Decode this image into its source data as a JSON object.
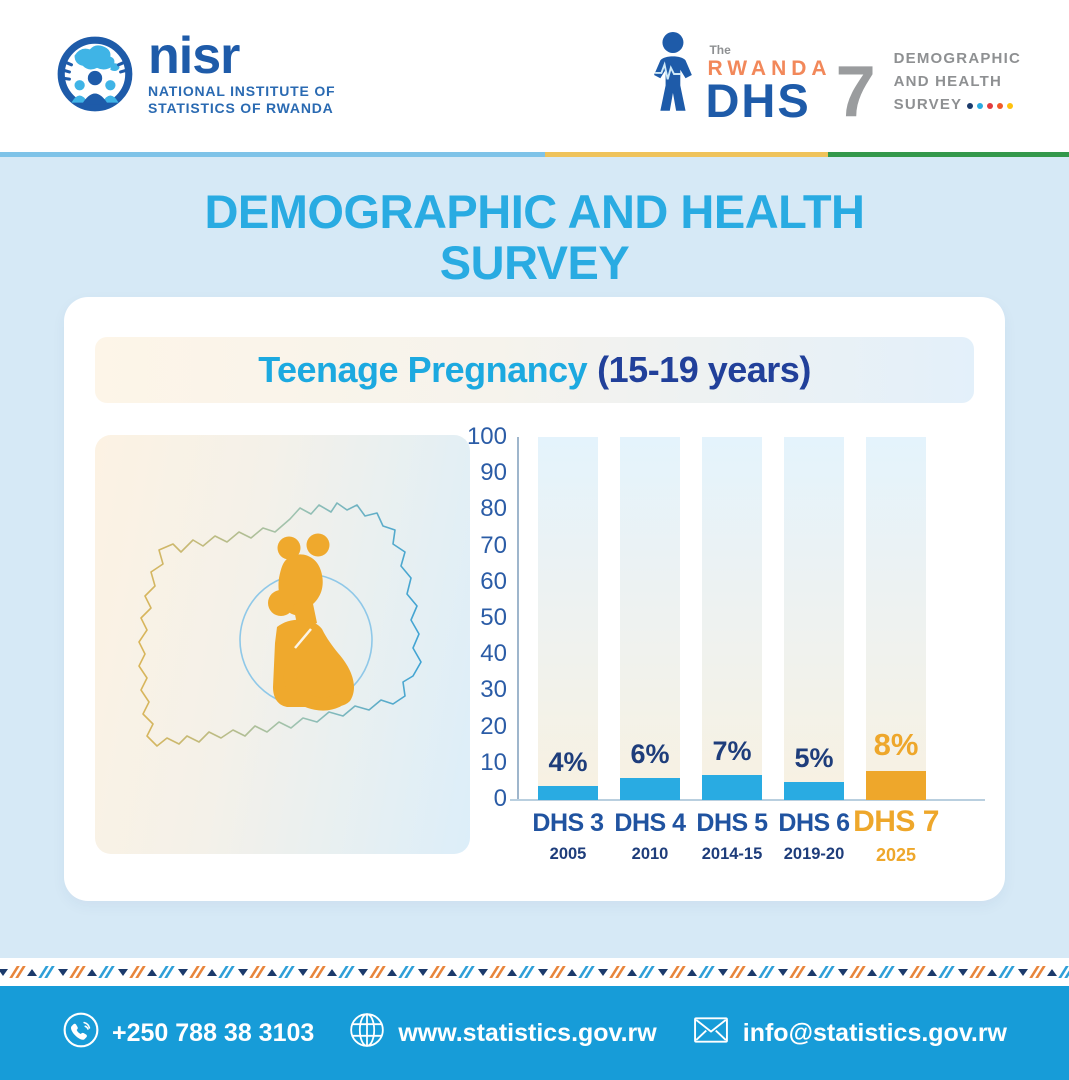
{
  "header": {
    "nisr_logo": {
      "name": "nisr",
      "line1": "NATIONAL INSTITUTE OF",
      "line2": "STATISTICS OF RWANDA"
    },
    "dhs_logo": {
      "the": "The",
      "rwanda": "RWANDA",
      "dhs": "DHS",
      "seven": "7",
      "right_line1": "DEMOGRAPHIC",
      "right_line2": "AND HEALTH",
      "right_line3": "SURVEY",
      "dots": [
        "#1B3A6B",
        "#29ABE2",
        "#E23B3E",
        "#F15A29",
        "#FFC20E"
      ]
    }
  },
  "flag_strip": {
    "colors": [
      "#7EC3E8",
      "#EFC35B",
      "#33984B"
    ],
    "widths": [
      "51%",
      "26.5%",
      "22.5%"
    ]
  },
  "main_title": "DEMOGRAPHIC AND HEALTH SURVEY",
  "subtitle": {
    "main": "Teenage Pregnancy",
    "range": "(15-19 years)"
  },
  "chart_data": {
    "type": "bar",
    "title": "Teenage Pregnancy (15-19 years)",
    "categories": [
      "DHS 3",
      "DHS 4",
      "DHS 5",
      "DHS 6",
      "DHS 7"
    ],
    "years": [
      "2005",
      "2010",
      "2014-15",
      "2019-20",
      "2025"
    ],
    "values": [
      4,
      6,
      7,
      5,
      8
    ],
    "labels": [
      "4%",
      "6%",
      "7%",
      "5%",
      "8%"
    ],
    "xlabel": "",
    "ylabel": "",
    "ylim": [
      0,
      100
    ],
    "yticks": [
      0,
      10,
      20,
      30,
      40,
      50,
      60,
      70,
      80,
      90,
      100
    ],
    "grid": false,
    "legend": false,
    "highlight_index": 4,
    "bar_colors": [
      "#29ABE2",
      "#29ABE2",
      "#29ABE2",
      "#29ABE2",
      "#EEA72B"
    ]
  },
  "footer": {
    "phone": "+250 788 38 3103",
    "website": "www.statistics.gov.rw",
    "email": "info@statistics.gov.rw"
  },
  "colors": {
    "accent_cyan": "#29ABE2",
    "navy": "#1E3D7B",
    "category_navy": "#2053A0",
    "highlight_orange": "#EEA72B",
    "panel_blue": "#D6E9F6",
    "footer_blue": "#179CD8",
    "pattern": [
      "#E8853C",
      "#2E9FD8",
      "#1B3A6B"
    ]
  }
}
